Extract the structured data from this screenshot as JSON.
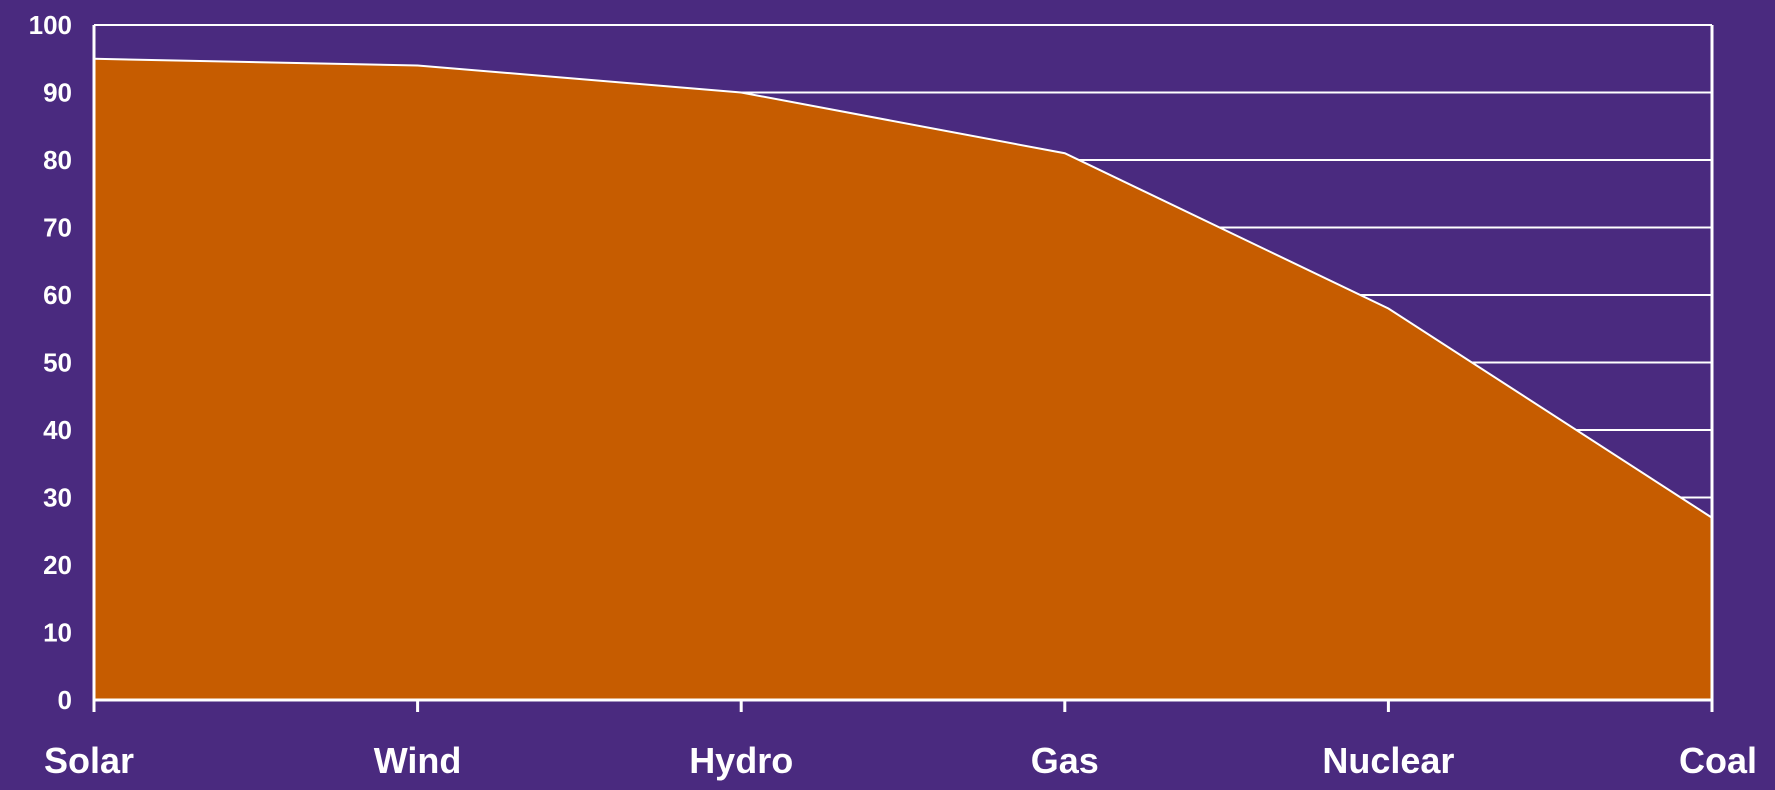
{
  "chart_data": {
    "type": "area",
    "title": "",
    "xlabel": "",
    "ylabel": "",
    "categories": [
      "Solar",
      "Wind",
      "Hydro",
      "Gas",
      "Nuclear",
      "Coal"
    ],
    "series": [
      {
        "values": [
          95,
          94,
          90,
          81,
          58,
          27
        ]
      }
    ],
    "ylim": [
      0,
      100
    ],
    "yticks": [
      0,
      10,
      20,
      30,
      40,
      50,
      60,
      70,
      80,
      90,
      100
    ],
    "grid": "horizontal",
    "legend": "none",
    "colors": {
      "background": "#4a2a7f",
      "area_fill": "#c65c00",
      "lines": "#ffffff",
      "text": "#ffffff"
    }
  }
}
